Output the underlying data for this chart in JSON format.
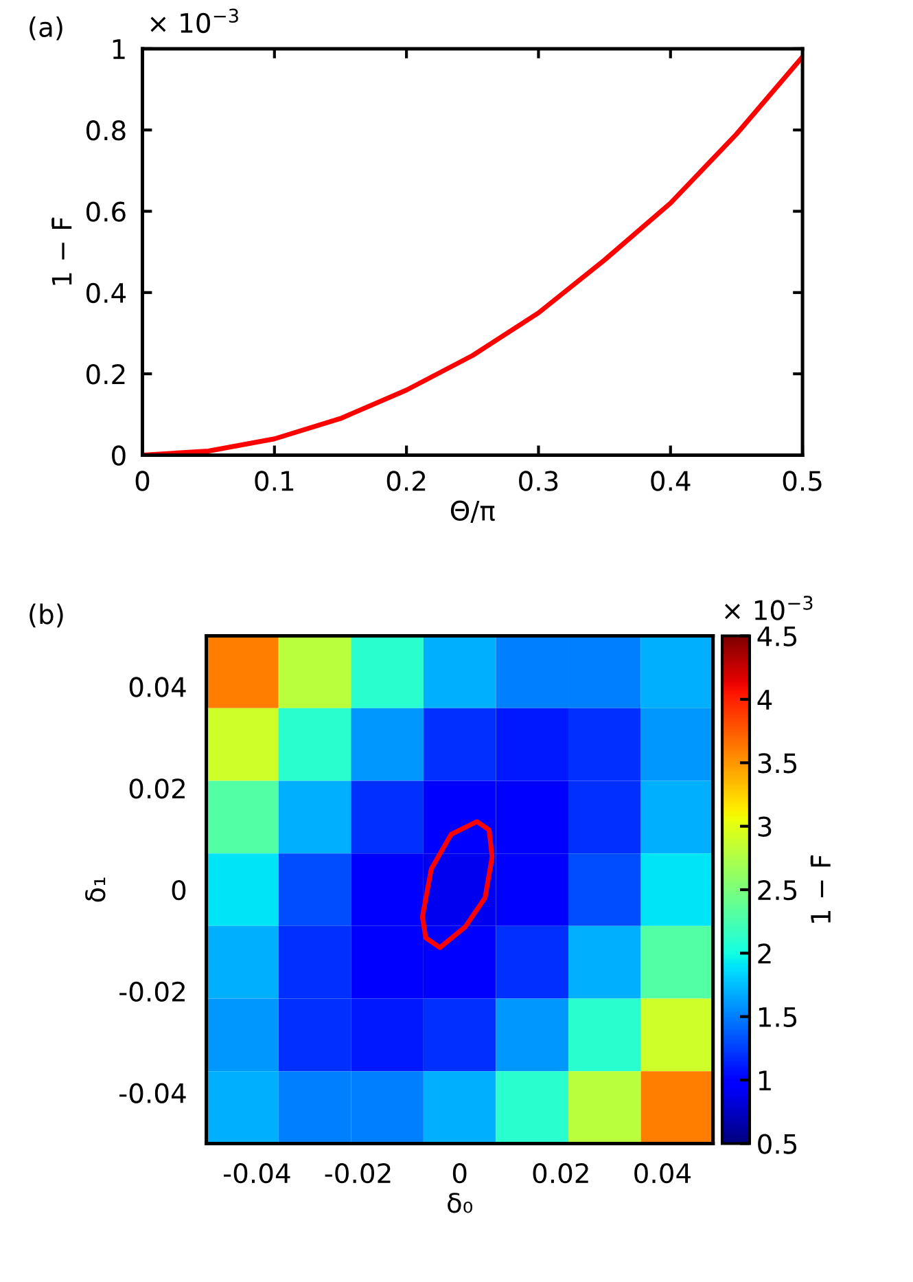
{
  "chart_data": [
    {
      "type": "line",
      "xlabel": "Θ/π",
      "ylabel": "1 − F̄",
      "annotations": [
        "(a)",
        "× 10$^{−3}$"
      ],
      "x": [
        0,
        0.05,
        0.1,
        0.15,
        0.2,
        0.25,
        0.3,
        0.35,
        0.4,
        0.45,
        0.5
      ],
      "series": [
        {
          "color": "#ff0000",
          "values": [
            0,
            0.01,
            0.04,
            0.09,
            0.16,
            0.245,
            0.35,
            0.48,
            0.62,
            0.79,
            0.98
          ]
        }
      ],
      "xlim": [
        0,
        0.5
      ],
      "xticks": [
        0,
        0.1,
        0.2,
        0.3,
        0.4,
        0.5
      ],
      "ylim": [
        0,
        1
      ],
      "yticks": [
        0,
        0.2,
        0.4,
        0.6,
        0.8,
        1
      ],
      "grid": false,
      "legend": false,
      "marker": "none",
      "line_style": "solid"
    },
    {
      "type": "heatmap",
      "xlabel": "δ₀",
      "ylabel": "δ₁",
      "clabel": "1 − F̄",
      "annotations": [
        "(b)",
        "× 10$^{−3}$"
      ],
      "x": [
        -0.0429,
        -0.0286,
        -0.0143,
        0,
        0.0143,
        0.0286,
        0.0429
      ],
      "y": [
        0.0429,
        0.0286,
        0.0143,
        0,
        -0.0143,
        -0.0286,
        -0.0429
      ],
      "cells": [
        [
          3.6,
          2.8,
          2.1,
          1.7,
          1.5,
          1.5,
          1.7
        ],
        [
          2.9,
          2.1,
          1.6,
          1.2,
          1.1,
          1.2,
          1.6
        ],
        [
          2.3,
          1.7,
          1.2,
          1.0,
          1.0,
          1.2,
          1.7
        ],
        [
          1.9,
          1.3,
          1.0,
          0.9,
          1.0,
          1.3,
          1.9
        ],
        [
          1.7,
          1.2,
          1.0,
          1.0,
          1.2,
          1.7,
          2.3
        ],
        [
          1.6,
          1.2,
          1.1,
          1.2,
          1.6,
          2.1,
          2.9
        ],
        [
          1.7,
          1.5,
          1.5,
          1.7,
          2.1,
          2.8,
          3.6
        ]
      ],
      "clim": [
        0.5,
        4.5
      ],
      "cticks": [
        0.5,
        1,
        1.5,
        2,
        2.5,
        3,
        3.5,
        4,
        4.5
      ],
      "xlim": [
        -0.05,
        0.05
      ],
      "xticks": [
        -0.04,
        -0.02,
        0,
        0.02,
        0.04
      ],
      "ylim": [
        -0.05,
        0.05
      ],
      "yticks": [
        -0.04,
        -0.02,
        0,
        0.02,
        0.04
      ],
      "series": [
        {
          "type": "line",
          "color": "#ff0000",
          "x": [
            -0.0073,
            -0.0056,
            -0.0017,
            0.0034,
            0.0058,
            0.0064,
            0.005,
            0.0011,
            -0.0039,
            -0.0067,
            -0.0073
          ],
          "values": [
            -0.005,
            0.0041,
            0.0109,
            0.0134,
            0.0118,
            0.0064,
            -0.0016,
            -0.0073,
            -0.0114,
            -0.0095,
            -0.0057
          ]
        }
      ]
    }
  ]
}
